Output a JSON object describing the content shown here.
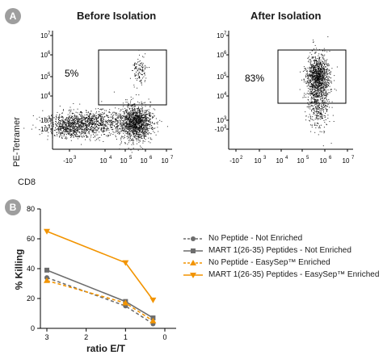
{
  "panel_a": {
    "badge": "A",
    "left": {
      "title": "Before Isolation",
      "gate_label": "5%"
    },
    "right": {
      "title": "After Isolation",
      "gate_label": "83%"
    },
    "y_axis_label": "PE-Tetramer",
    "x_axis_label": "CD8",
    "left_x_ticks": [
      "-10",
      "10",
      "10",
      "10",
      "10"
    ],
    "right_x_ticks": [
      "-10",
      "10",
      "10",
      "10",
      "10",
      "10"
    ],
    "y_ticks": [
      "10",
      "10",
      "10",
      "10",
      "-10"
    ]
  },
  "panel_b": {
    "badge": "B",
    "chart_data": {
      "type": "line",
      "xlabel": "ratio E/T",
      "ylabel": "% Killing",
      "ylim": [
        0,
        80
      ],
      "y_ticks": [
        0,
        20,
        40,
        60,
        80
      ],
      "x_ticks": [
        3,
        2,
        1,
        0
      ],
      "x": [
        3,
        1,
        0.3
      ],
      "legend_position": "right",
      "series": [
        {
          "name": "No Peptide - Not Enriched",
          "values": [
            34,
            15,
            3
          ],
          "color": "#6d6d6d",
          "dashed": true,
          "marker": "circle"
        },
        {
          "name": "MART 1(26-35) Peptides - Not Enriched",
          "values": [
            39,
            18,
            7
          ],
          "color": "#6d6d6d",
          "dashed": false,
          "marker": "square"
        },
        {
          "name": "No Peptide - EasySep™ Enriched",
          "values": [
            32,
            17,
            5
          ],
          "color": "#f29400",
          "dashed": true,
          "marker": "triangle-up"
        },
        {
          "name": "MART 1(26-35) Peptides - EasySep™ Enriched",
          "values": [
            65,
            44,
            19
          ],
          "color": "#f29400",
          "dashed": false,
          "marker": "triangle-down"
        }
      ]
    }
  }
}
